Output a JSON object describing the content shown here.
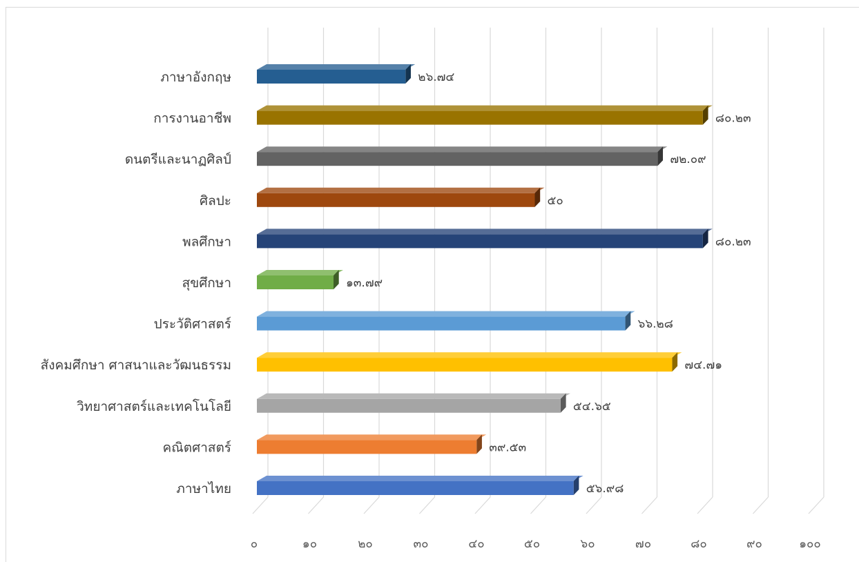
{
  "chart_data": {
    "type": "bar",
    "orientation": "horizontal",
    "style": "3d",
    "title": "",
    "xlabel": "",
    "ylabel": "",
    "xlim": [
      0,
      100
    ],
    "ticks": [
      "๐",
      "๑๐",
      "๒๐",
      "๓๐",
      "๔๐",
      "๕๐",
      "๖๐",
      "๗๐",
      "๘๐",
      "๙๐",
      "๑๐๐"
    ],
    "grid": true,
    "legend": "none",
    "categories": [
      "ภาษาไทย",
      "คณิตศาสตร์",
      "วิทยาศาสตร์และเทคโนโลยี",
      "สังคมศึกษา ศาสนาและวัฒนธรรม",
      "ประวัติศาสตร์",
      "สุขศึกษา",
      "พลศึกษา",
      "ศิลปะ",
      "ดนตรีและนาฏศิลป์",
      "การงานอาชีพ",
      "ภาษาอังกฤษ"
    ],
    "values": [
      56.98,
      39.53,
      54.65,
      74.71,
      66.28,
      13.79,
      80.23,
      50,
      72.09,
      80.23,
      26.74
    ],
    "value_labels": [
      "๕๖.๙๘",
      "๓๙.๕๓",
      "๕๔.๖๕",
      "๗๔.๗๑",
      "๖๖.๒๘",
      "๑๓.๗๙",
      "๘๐.๒๓",
      "๕๐",
      "๗๒.๐๙",
      "๘๐.๒๓",
      "๒๖.๗๔"
    ],
    "colors": [
      "#4472c4",
      "#ed7d31",
      "#a5a5a5",
      "#ffc000",
      "#5b9bd5",
      "#70ad47",
      "#264478",
      "#9e480e",
      "#636363",
      "#997300",
      "#255e91"
    ]
  }
}
